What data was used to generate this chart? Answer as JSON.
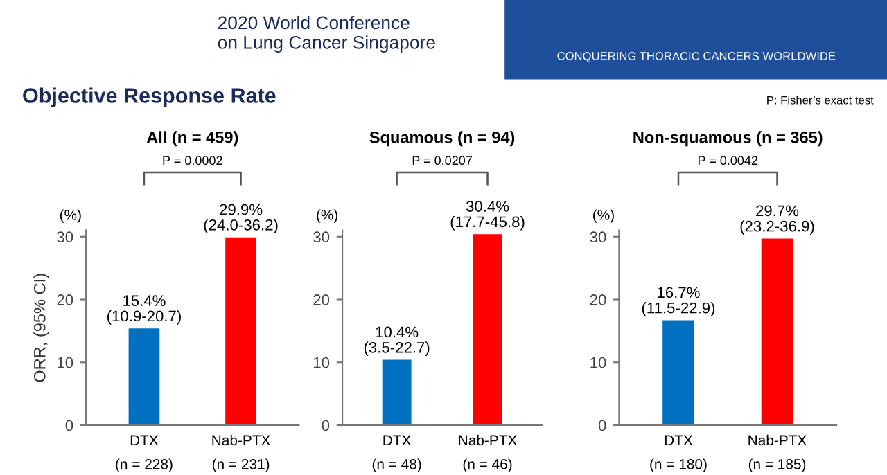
{
  "chart_data": [
    {
      "type": "bar",
      "title": "All (n = 459)",
      "subtitle": "P = 0.0002",
      "ylabel": "ORR, (95% CI)",
      "categories": [
        "DTX\n(n = 228)",
        "Nab-PTX\n(n = 231)"
      ],
      "values": [
        15.4,
        29.9
      ],
      "colors": [
        "#0070c0",
        "#ff0000"
      ],
      "value_labels": [
        "15.4%\n(10.9-20.7)",
        "29.9%\n(24.0-36.2)"
      ],
      "ylim": [
        0,
        31
      ],
      "yticks": [
        0,
        10,
        20,
        30
      ],
      "grid": false,
      "legend": false,
      "annotations": [
        "(%)",
        "Objective Response Rate",
        "P: Fisher’s exact test",
        "2020 World Conference\non Lung Cancer Singapore",
        "CONQUERING THORACIC CANCERS WORLDWIDE"
      ]
    },
    {
      "type": "bar",
      "title": "Squamous (n = 94)",
      "subtitle": "P = 0.0207",
      "categories": [
        "DTX\n(n = 48)",
        "Nab-PTX\n(n = 46)"
      ],
      "values": [
        10.4,
        30.4
      ],
      "colors": [
        "#0070c0",
        "#ff0000"
      ],
      "value_labels": [
        "10.4%\n(3.5-22.7)",
        "30.4%\n(17.7-45.8)"
      ],
      "ylim": [
        0,
        31
      ],
      "yticks": [
        0,
        10,
        20,
        30
      ],
      "grid": false,
      "legend": false,
      "annotations": [
        "(%)"
      ]
    },
    {
      "type": "bar",
      "title": "Non-squamous (n = 365)",
      "subtitle": "P = 0.0042",
      "categories": [
        "DTX\n(n = 180)",
        "Nab-PTX\n(n = 185)"
      ],
      "values": [
        16.7,
        29.7
      ],
      "colors": [
        "#0070c0",
        "#ff0000"
      ],
      "value_labels": [
        "16.7%\n(11.5-22.9)",
        "29.7%\n(23.2-36.9)"
      ],
      "ylim": [
        0,
        31
      ],
      "yticks": [
        0,
        10,
        20,
        30
      ],
      "grid": false,
      "legend": false,
      "annotations": [
        "(%)"
      ]
    }
  ]
}
